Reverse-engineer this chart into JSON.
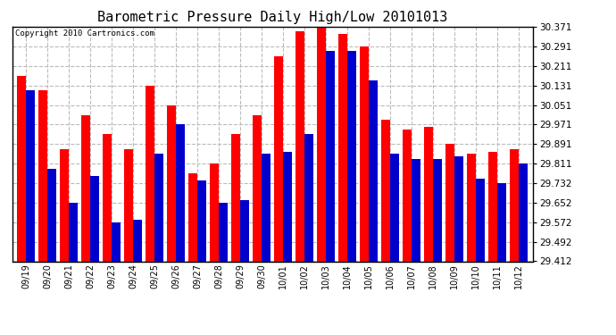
{
  "title": "Barometric Pressure Daily High/Low 20101013",
  "copyright": "Copyright 2010 Cartronics.com",
  "dates": [
    "09/19",
    "09/20",
    "09/21",
    "09/22",
    "09/23",
    "09/24",
    "09/25",
    "09/26",
    "09/27",
    "09/28",
    "09/29",
    "09/30",
    "10/01",
    "10/02",
    "10/03",
    "10/04",
    "10/05",
    "10/06",
    "10/07",
    "10/08",
    "10/09",
    "10/10",
    "10/11",
    "10/12"
  ],
  "highs": [
    30.171,
    30.111,
    29.871,
    30.011,
    29.931,
    29.871,
    30.131,
    30.051,
    29.771,
    29.811,
    29.931,
    30.011,
    30.251,
    30.351,
    30.371,
    30.341,
    30.291,
    29.991,
    29.951,
    29.961,
    29.891,
    29.851,
    29.861,
    29.871
  ],
  "lows": [
    30.111,
    29.791,
    29.651,
    29.761,
    29.571,
    29.582,
    29.851,
    29.971,
    29.741,
    29.651,
    29.661,
    29.851,
    29.861,
    29.931,
    30.271,
    30.271,
    30.151,
    29.851,
    29.831,
    29.831,
    29.841,
    29.751,
    29.731,
    29.811
  ],
  "bar_color_high": "#ff0000",
  "bar_color_low": "#0000cc",
  "background_color": "#ffffff",
  "plot_bg_color": "#ffffff",
  "grid_color": "#bbbbbb",
  "title_fontsize": 11,
  "ymin": 29.412,
  "ymax": 30.371,
  "yticks": [
    29.412,
    29.492,
    29.572,
    29.652,
    29.732,
    29.811,
    29.891,
    29.971,
    30.051,
    30.131,
    30.211,
    30.291,
    30.371
  ]
}
